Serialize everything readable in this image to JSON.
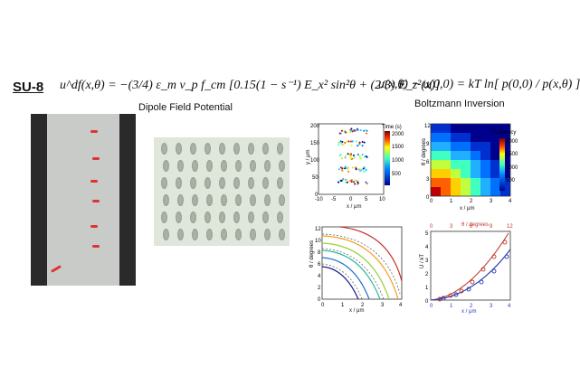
{
  "material_label": "SU-8",
  "equations": {
    "dipole": "u^df(x,θ) = −(3/4) ε_m v_p f_cm [0.15(1 − s⁻¹) E_x² sin²θ + (2/3) E_z²(x)]",
    "boltzmann": "u(x,θ) − u(0,0) = kT ln[ p(0,0) / p(x,θ) ]"
  },
  "captions": {
    "dipole": "Dipole Field Potential",
    "boltzmann": "Boltzmann Inversion"
  },
  "plots": {
    "scatter": {
      "ylabel": "y / μm",
      "xlabel": "x / μm",
      "colorbar_title": "Time (s)",
      "xticks": [
        "-10",
        "-5",
        "0",
        "5",
        "10"
      ],
      "yticks": [
        "200",
        "150",
        "100",
        "50",
        "0"
      ],
      "cticks": [
        "2000",
        "1500",
        "1000",
        "500"
      ]
    },
    "heatmap": {
      "ylabel": "θ / degrees",
      "xlabel": "x / μm",
      "colorbar_title": "Frequency",
      "xticks": [
        "0",
        "1",
        "2",
        "3",
        "4"
      ],
      "yticks": [
        "12",
        "9",
        "6",
        "3",
        "0"
      ],
      "cticks": [
        "2000",
        "1500",
        "1000",
        "500"
      ]
    },
    "contour": {
      "ylabel": "θ / degrees",
      "xlabel": "x / μm",
      "xticks": [
        "0",
        "1",
        "2",
        "3",
        "4"
      ],
      "yticks": [
        "12",
        "10",
        "8",
        "6",
        "4",
        "2",
        "0"
      ]
    },
    "energy": {
      "ylabel": "U / kT",
      "xlabel": "x / μm",
      "top_xlabel": "θ / degrees",
      "xticks": [
        "0",
        "1",
        "2",
        "3",
        "4"
      ],
      "top_xticks": [
        "0",
        "3",
        "6",
        "9",
        "12"
      ],
      "yticks": [
        "5",
        "4",
        "3",
        "2",
        "1",
        "0"
      ]
    }
  },
  "colors": {
    "red_axis": "#c0392b",
    "blue_axis": "#2a3bb5"
  }
}
